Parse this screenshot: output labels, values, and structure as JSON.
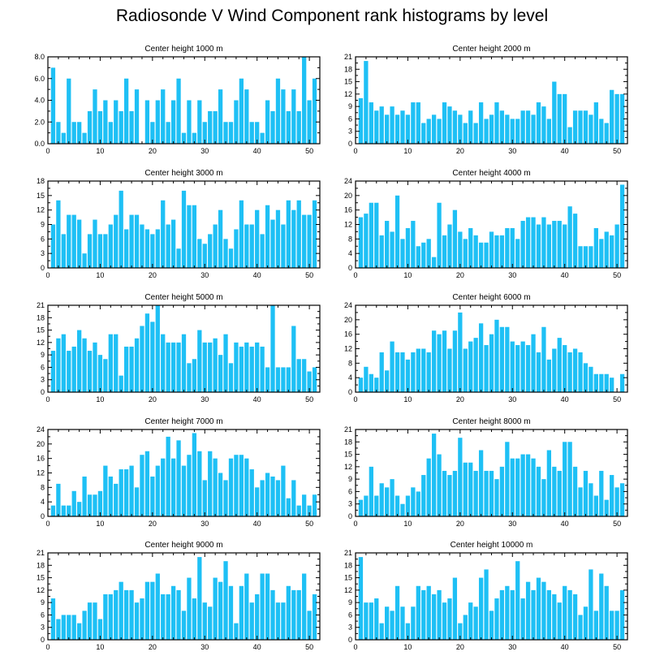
{
  "title": "Radiosonde V Wind Component rank histograms by level",
  "bar_color": "#1ec0f5",
  "chart_data": [
    {
      "type": "bar",
      "title": "Center height 1000 m",
      "x": [
        1,
        2,
        3,
        4,
        5,
        6,
        7,
        8,
        9,
        10,
        11,
        12,
        13,
        14,
        15,
        16,
        17,
        18,
        19,
        20,
        21,
        22,
        23,
        24,
        25,
        26,
        27,
        28,
        29,
        30,
        31,
        32,
        33,
        34,
        35,
        36,
        37,
        38,
        39,
        40,
        41,
        42,
        43,
        44,
        45,
        46,
        47,
        48,
        49,
        50,
        51
      ],
      "values": [
        7,
        2,
        1,
        6,
        2,
        2,
        1,
        3,
        5,
        3,
        4,
        2,
        4,
        3,
        6,
        3,
        5,
        0,
        4,
        2,
        4,
        5,
        2,
        4,
        6,
        1,
        4,
        1,
        4,
        2,
        3,
        3,
        5,
        2,
        2,
        4,
        6,
        5,
        2,
        2,
        1,
        4,
        3,
        6,
        5,
        3,
        5,
        3,
        8,
        4,
        6
      ],
      "ylim": [
        0,
        8
      ],
      "yticks": [
        0,
        2,
        4,
        6,
        8
      ],
      "ytick_labels": [
        "0.0",
        "2.0",
        "4.0",
        "6.0",
        "8.0"
      ],
      "xticks": [
        0,
        10,
        20,
        30,
        40,
        50
      ],
      "xlim": [
        0,
        52
      ],
      "yaxis_side": "left"
    },
    {
      "type": "bar",
      "title": "Center height 2000 m",
      "x": [
        1,
        2,
        3,
        4,
        5,
        6,
        7,
        8,
        9,
        10,
        11,
        12,
        13,
        14,
        15,
        16,
        17,
        18,
        19,
        20,
        21,
        22,
        23,
        24,
        25,
        26,
        27,
        28,
        29,
        30,
        31,
        32,
        33,
        34,
        35,
        36,
        37,
        38,
        39,
        40,
        41,
        42,
        43,
        44,
        45,
        46,
        47,
        48,
        49,
        50,
        51
      ],
      "values": [
        11,
        20,
        10,
        8,
        9,
        7,
        9,
        7,
        8,
        7,
        10,
        10,
        5,
        6,
        7,
        6,
        10,
        9,
        8,
        7,
        5,
        8,
        5,
        10,
        6,
        7,
        10,
        8,
        7,
        6,
        6,
        8,
        8,
        7,
        10,
        9,
        6,
        15,
        12,
        12,
        4,
        8,
        8,
        8,
        7,
        10,
        6,
        5,
        13,
        12,
        12
      ],
      "ylim": [
        0,
        21
      ],
      "yticks": [
        0,
        3,
        6,
        9,
        12,
        15,
        18,
        21
      ],
      "ytick_labels": [
        "0",
        "3",
        "6",
        "9",
        "12",
        "15",
        "18",
        "21"
      ],
      "xticks": [
        0,
        10,
        20,
        30,
        40,
        50
      ],
      "xlim": [
        0,
        52
      ],
      "yaxis_side": "left"
    },
    {
      "type": "bar",
      "title": "Center height 3000 m",
      "x": [
        1,
        2,
        3,
        4,
        5,
        6,
        7,
        8,
        9,
        10,
        11,
        12,
        13,
        14,
        15,
        16,
        17,
        18,
        19,
        20,
        21,
        22,
        23,
        24,
        25,
        26,
        27,
        28,
        29,
        30,
        31,
        32,
        33,
        34,
        35,
        36,
        37,
        38,
        39,
        40,
        41,
        42,
        43,
        44,
        45,
        46,
        47,
        48,
        49,
        50,
        51
      ],
      "values": [
        9,
        14,
        7,
        11,
        11,
        10,
        3,
        7,
        10,
        7,
        7,
        9,
        11,
        16,
        8,
        11,
        11,
        9,
        8,
        7,
        8,
        14,
        9,
        10,
        4,
        16,
        13,
        13,
        6,
        5,
        7,
        9,
        12,
        6,
        4,
        8,
        14,
        9,
        9,
        12,
        7,
        13,
        10,
        12,
        9,
        14,
        12,
        14,
        11,
        11,
        14
      ],
      "ylim": [
        0,
        18
      ],
      "yticks": [
        0,
        3,
        6,
        9,
        12,
        15,
        18
      ],
      "ytick_labels": [
        "0",
        "3",
        "6",
        "9",
        "12",
        "15",
        "18"
      ],
      "xticks": [
        0,
        10,
        20,
        30,
        40,
        50
      ],
      "xlim": [
        0,
        52
      ],
      "yaxis_side": "left"
    },
    {
      "type": "bar",
      "title": "Center height 4000 m",
      "x": [
        1,
        2,
        3,
        4,
        5,
        6,
        7,
        8,
        9,
        10,
        11,
        12,
        13,
        14,
        15,
        16,
        17,
        18,
        19,
        20,
        21,
        22,
        23,
        24,
        25,
        26,
        27,
        28,
        29,
        30,
        31,
        32,
        33,
        34,
        35,
        36,
        37,
        38,
        39,
        40,
        41,
        42,
        43,
        44,
        45,
        46,
        47,
        48,
        49,
        50,
        51
      ],
      "values": [
        14,
        15,
        18,
        18,
        9,
        13,
        10,
        20,
        8,
        11,
        13,
        6,
        7,
        8,
        3,
        18,
        9,
        12,
        16,
        10,
        8,
        11,
        9,
        7,
        7,
        10,
        9,
        9,
        11,
        11,
        8,
        13,
        14,
        14,
        12,
        14,
        12,
        13,
        13,
        12,
        17,
        15,
        6,
        6,
        6,
        11,
        8,
        10,
        9,
        12,
        23
      ],
      "ylim": [
        0,
        24
      ],
      "yticks": [
        0,
        4,
        8,
        12,
        16,
        20,
        24
      ],
      "ytick_labels": [
        "0",
        "4",
        "8",
        "12",
        "16",
        "20",
        "24"
      ],
      "xticks": [
        0,
        10,
        20,
        30,
        40,
        50
      ],
      "xlim": [
        0,
        52
      ],
      "yaxis_side": "left"
    },
    {
      "type": "bar",
      "title": "Center height 5000 m",
      "x": [
        1,
        2,
        3,
        4,
        5,
        6,
        7,
        8,
        9,
        10,
        11,
        12,
        13,
        14,
        15,
        16,
        17,
        18,
        19,
        20,
        21,
        22,
        23,
        24,
        25,
        26,
        27,
        28,
        29,
        30,
        31,
        32,
        33,
        34,
        35,
        36,
        37,
        38,
        39,
        40,
        41,
        42,
        43,
        44,
        45,
        46,
        47,
        48,
        49,
        50,
        51
      ],
      "values": [
        10,
        13,
        14,
        10,
        11,
        15,
        13,
        10,
        12,
        9,
        8,
        14,
        14,
        4,
        11,
        11,
        13,
        16,
        19,
        17,
        21,
        14,
        12,
        12,
        12,
        14,
        7,
        8,
        15,
        12,
        12,
        13,
        9,
        14,
        7,
        12,
        11,
        12,
        11,
        12,
        11,
        6,
        21,
        6,
        6,
        6,
        16,
        8,
        8,
        5,
        6
      ],
      "ylim": [
        0,
        21
      ],
      "yticks": [
        0,
        3,
        6,
        9,
        12,
        15,
        18,
        21
      ],
      "ytick_labels": [
        "0",
        "3",
        "6",
        "9",
        "12",
        "15",
        "18",
        "21"
      ],
      "xticks": [
        0,
        10,
        20,
        30,
        40,
        50
      ],
      "xlim": [
        0,
        52
      ],
      "yaxis_side": "left"
    },
    {
      "type": "bar",
      "title": "Center height 6000 m",
      "x": [
        1,
        2,
        3,
        4,
        5,
        6,
        7,
        8,
        9,
        10,
        11,
        12,
        13,
        14,
        15,
        16,
        17,
        18,
        19,
        20,
        21,
        22,
        23,
        24,
        25,
        26,
        27,
        28,
        29,
        30,
        31,
        32,
        33,
        34,
        35,
        36,
        37,
        38,
        39,
        40,
        41,
        42,
        43,
        44,
        45,
        46,
        47,
        48,
        49,
        50,
        51
      ],
      "values": [
        4,
        7,
        5,
        4,
        11,
        6,
        14,
        11,
        11,
        9,
        11,
        12,
        12,
        11,
        17,
        16,
        17,
        12,
        17,
        22,
        12,
        14,
        15,
        19,
        13,
        16,
        20,
        18,
        18,
        14,
        13,
        14,
        13,
        16,
        11,
        18,
        9,
        12,
        15,
        13,
        11,
        12,
        11,
        8,
        7,
        5,
        5,
        5,
        4,
        0,
        5
      ],
      "ylim": [
        0,
        24
      ],
      "yticks": [
        0,
        4,
        8,
        12,
        16,
        20,
        24
      ],
      "ytick_labels": [
        "0",
        "4",
        "8",
        "12",
        "16",
        "20",
        "24"
      ],
      "xticks": [
        0,
        10,
        20,
        30,
        40,
        50
      ],
      "xlim": [
        0,
        52
      ],
      "yaxis_side": "left"
    },
    {
      "type": "bar",
      "title": "Center height 7000 m",
      "x": [
        1,
        2,
        3,
        4,
        5,
        6,
        7,
        8,
        9,
        10,
        11,
        12,
        13,
        14,
        15,
        16,
        17,
        18,
        19,
        20,
        21,
        22,
        23,
        24,
        25,
        26,
        27,
        28,
        29,
        30,
        31,
        32,
        33,
        34,
        35,
        36,
        37,
        38,
        39,
        40,
        41,
        42,
        43,
        44,
        45,
        46,
        47,
        48,
        49,
        50,
        51
      ],
      "values": [
        3,
        9,
        3,
        3,
        7,
        4,
        11,
        6,
        6,
        7,
        14,
        11,
        9,
        13,
        13,
        14,
        8,
        17,
        18,
        11,
        14,
        16,
        22,
        16,
        21,
        14,
        17,
        23,
        18,
        10,
        18,
        16,
        12,
        10,
        16,
        17,
        17,
        16,
        13,
        8,
        10,
        12,
        11,
        10,
        14,
        5,
        10,
        3,
        6,
        3,
        6
      ],
      "ylim": [
        0,
        24
      ],
      "yticks": [
        0,
        4,
        8,
        12,
        16,
        20,
        24
      ],
      "ytick_labels": [
        "0",
        "4",
        "8",
        "12",
        "16",
        "20",
        "24"
      ],
      "xticks": [
        0,
        10,
        20,
        30,
        40,
        50
      ],
      "xlim": [
        0,
        52
      ],
      "yaxis_side": "left"
    },
    {
      "type": "bar",
      "title": "Center height 8000 m",
      "x": [
        1,
        2,
        3,
        4,
        5,
        6,
        7,
        8,
        9,
        10,
        11,
        12,
        13,
        14,
        15,
        16,
        17,
        18,
        19,
        20,
        21,
        22,
        23,
        24,
        25,
        26,
        27,
        28,
        29,
        30,
        31,
        32,
        33,
        34,
        35,
        36,
        37,
        38,
        39,
        40,
        41,
        42,
        43,
        44,
        45,
        46,
        47,
        48,
        49,
        50,
        51
      ],
      "values": [
        4,
        5,
        12,
        5,
        8,
        7,
        9,
        5,
        3,
        5,
        7,
        6,
        10,
        14,
        20,
        15,
        11,
        10,
        11,
        19,
        13,
        13,
        11,
        16,
        11,
        11,
        9,
        12,
        18,
        14,
        14,
        15,
        15,
        14,
        12,
        9,
        16,
        12,
        11,
        18,
        18,
        12,
        7,
        11,
        8,
        5,
        11,
        4,
        10,
        7,
        8
      ],
      "ylim": [
        0,
        21
      ],
      "yticks": [
        0,
        3,
        6,
        9,
        12,
        15,
        18,
        21
      ],
      "ytick_labels": [
        "0",
        "3",
        "6",
        "9",
        "12",
        "15",
        "18",
        "21"
      ],
      "xticks": [
        0,
        10,
        20,
        30,
        40,
        50
      ],
      "xlim": [
        0,
        52
      ],
      "yaxis_side": "left"
    },
    {
      "type": "bar",
      "title": "Center height 9000 m",
      "x": [
        1,
        2,
        3,
        4,
        5,
        6,
        7,
        8,
        9,
        10,
        11,
        12,
        13,
        14,
        15,
        16,
        17,
        18,
        19,
        20,
        21,
        22,
        23,
        24,
        25,
        26,
        27,
        28,
        29,
        30,
        31,
        32,
        33,
        34,
        35,
        36,
        37,
        38,
        39,
        40,
        41,
        42,
        43,
        44,
        45,
        46,
        47,
        48,
        49,
        50,
        51
      ],
      "values": [
        10,
        5,
        6,
        6,
        6,
        4,
        7,
        9,
        9,
        5,
        11,
        11,
        12,
        14,
        12,
        12,
        9,
        10,
        14,
        14,
        16,
        11,
        11,
        13,
        12,
        7,
        15,
        10,
        20,
        9,
        8,
        15,
        14,
        19,
        13,
        4,
        13,
        16,
        9,
        11,
        16,
        16,
        12,
        9,
        9,
        13,
        12,
        12,
        16,
        7,
        11
      ],
      "ylim": [
        0,
        21
      ],
      "yticks": [
        0,
        3,
        6,
        9,
        12,
        15,
        18,
        21
      ],
      "ytick_labels": [
        "0",
        "3",
        "6",
        "9",
        "12",
        "15",
        "18",
        "21"
      ],
      "xticks": [
        0,
        10,
        20,
        30,
        40,
        50
      ],
      "xlim": [
        0,
        52
      ],
      "yaxis_side": "left"
    },
    {
      "type": "bar",
      "title": "Center height 10000 m",
      "x": [
        1,
        2,
        3,
        4,
        5,
        6,
        7,
        8,
        9,
        10,
        11,
        12,
        13,
        14,
        15,
        16,
        17,
        18,
        19,
        20,
        21,
        22,
        23,
        24,
        25,
        26,
        27,
        28,
        29,
        30,
        31,
        32,
        33,
        34,
        35,
        36,
        37,
        38,
        39,
        40,
        41,
        42,
        43,
        44,
        45,
        46,
        47,
        48,
        49,
        50,
        51
      ],
      "values": [
        20,
        9,
        9,
        10,
        4,
        8,
        7,
        13,
        8,
        4,
        8,
        13,
        12,
        13,
        11,
        12,
        9,
        10,
        15,
        4,
        6,
        9,
        8,
        15,
        17,
        7,
        10,
        12,
        13,
        12,
        19,
        10,
        14,
        12,
        15,
        14,
        12,
        11,
        9,
        13,
        12,
        11,
        6,
        8,
        17,
        7,
        16,
        13,
        7,
        7,
        12
      ],
      "ylim": [
        0,
        21
      ],
      "yticks": [
        0,
        3,
        6,
        9,
        12,
        15,
        18,
        21
      ],
      "ytick_labels": [
        "0",
        "3",
        "6",
        "9",
        "12",
        "15",
        "18",
        "21"
      ],
      "xticks": [
        0,
        10,
        20,
        30,
        40,
        50
      ],
      "xlim": [
        0,
        52
      ],
      "yaxis_side": "left"
    }
  ]
}
